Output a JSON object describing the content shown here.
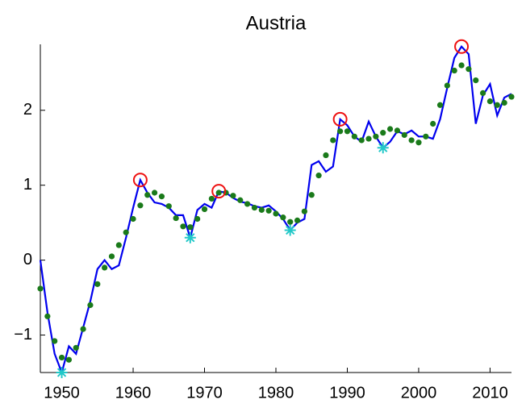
{
  "chart_data": {
    "type": "line",
    "title": "Austria",
    "x": [
      1947,
      1948,
      1949,
      1950,
      1951,
      1952,
      1953,
      1954,
      1955,
      1956,
      1957,
      1958,
      1959,
      1960,
      1961,
      1962,
      1963,
      1964,
      1965,
      1966,
      1967,
      1968,
      1969,
      1970,
      1971,
      1972,
      1973,
      1974,
      1975,
      1976,
      1977,
      1978,
      1979,
      1980,
      1981,
      1982,
      1983,
      1984,
      1985,
      1986,
      1987,
      1988,
      1989,
      1990,
      1991,
      1992,
      1993,
      1994,
      1995,
      1996,
      1997,
      1998,
      1999,
      2000,
      2001,
      2002,
      2003,
      2004,
      2005,
      2006,
      2007,
      2008,
      2009,
      2010,
      2011,
      2012,
      2013
    ],
    "series": [
      {
        "color": "#0000ee",
        "marker": "line",
        "values": [
          0.0,
          -0.7,
          -1.25,
          -1.5,
          -1.15,
          -1.25,
          -0.9,
          -0.55,
          -0.12,
          0.0,
          -0.12,
          -0.07,
          0.3,
          0.7,
          1.07,
          0.9,
          0.77,
          0.75,
          0.7,
          0.6,
          0.6,
          0.3,
          0.67,
          0.75,
          0.7,
          0.92,
          0.9,
          0.83,
          0.78,
          0.76,
          0.72,
          0.7,
          0.73,
          0.65,
          0.55,
          0.4,
          0.5,
          0.55,
          1.27,
          1.32,
          1.18,
          1.25,
          1.88,
          1.8,
          1.65,
          1.58,
          1.85,
          1.65,
          1.5,
          1.58,
          1.72,
          1.68,
          1.73,
          1.65,
          1.65,
          1.62,
          1.88,
          2.3,
          2.7,
          2.85,
          2.75,
          1.82,
          2.2,
          2.35,
          1.93,
          2.17,
          2.22
        ]
      },
      {
        "color": "#1a7a1a",
        "marker": "dot",
        "values": [
          -0.38,
          -0.75,
          -1.08,
          -1.3,
          -1.33,
          -1.17,
          -0.92,
          -0.6,
          -0.32,
          -0.1,
          0.05,
          0.2,
          0.37,
          0.55,
          0.73,
          0.87,
          0.9,
          0.85,
          0.72,
          0.56,
          0.45,
          0.44,
          0.55,
          0.68,
          0.82,
          0.9,
          0.9,
          0.86,
          0.8,
          0.75,
          0.7,
          0.67,
          0.66,
          0.62,
          0.57,
          0.51,
          0.53,
          0.65,
          0.87,
          1.13,
          1.4,
          1.6,
          1.72,
          1.72,
          1.65,
          1.6,
          1.62,
          1.65,
          1.7,
          1.75,
          1.73,
          1.67,
          1.6,
          1.57,
          1.65,
          1.82,
          2.07,
          2.33,
          2.53,
          2.6,
          2.55,
          2.4,
          2.23,
          2.12,
          2.07,
          2.1,
          2.18
        ]
      },
      {
        "color": "#ee1111",
        "marker": "circle",
        "x": [
          1961,
          1972,
          1989,
          2006
        ],
        "values": [
          1.07,
          0.92,
          1.88,
          2.85
        ]
      },
      {
        "color": "#22c8c8",
        "marker": "asterisk",
        "x": [
          1950,
          1968,
          1982,
          1995
        ],
        "values": [
          -1.5,
          0.3,
          0.4,
          1.5
        ]
      }
    ],
    "xlim": [
      1947,
      2013
    ],
    "xticks": [
      1950,
      1960,
      1970,
      1980,
      1990,
      2000,
      2010
    ],
    "ylim": [
      -1.5,
      2.88
    ],
    "yticks": [
      {
        "value": -1,
        "label": "−1"
      },
      0,
      1,
      2
    ]
  }
}
